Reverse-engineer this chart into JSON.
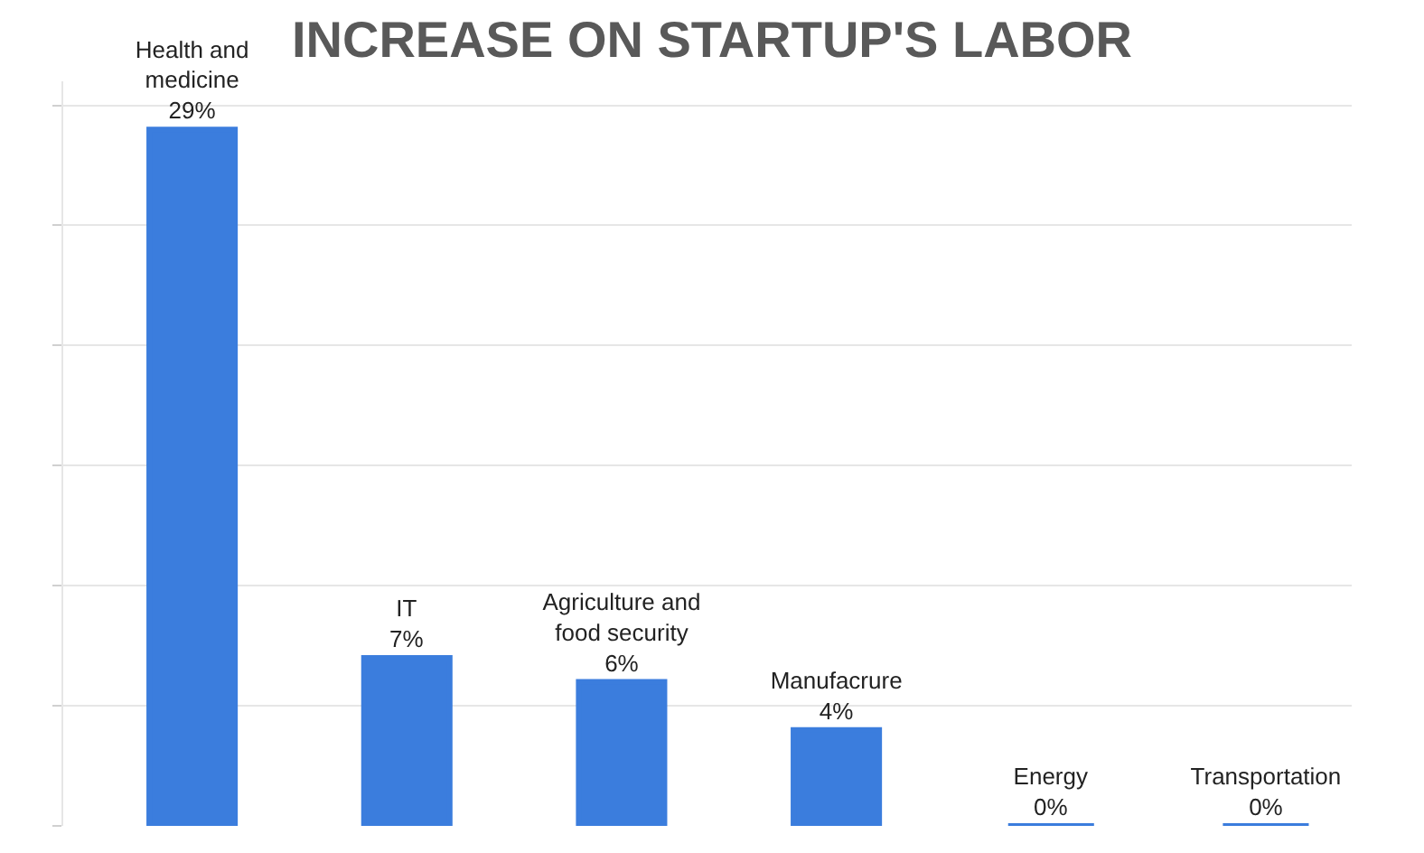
{
  "chart_data": {
    "type": "bar",
    "title": "INCREASE ON STARTUP'S LABOR",
    "categories": [
      "Health and medicine",
      "IT",
      "Agriculture and food security",
      "Manufacrure",
      "Energy",
      "Transportation"
    ],
    "values": [
      29,
      7,
      6,
      4,
      0,
      0
    ],
    "value_labels": [
      "29%",
      "7%",
      "6%",
      "4%",
      "0%",
      "0%"
    ],
    "color": "#3b7ddd",
    "ylim": [
      0,
      31
    ],
    "yticks": [
      {
        "value": 0,
        "label": null
      },
      {
        "value": 5,
        "label": null
      },
      {
        "value": 10,
        "label": null
      },
      {
        "value": 15,
        "label": null
      },
      {
        "value": 20,
        "label": null
      },
      {
        "value": 25,
        "label": null
      },
      {
        "value": 30,
        "label": null
      }
    ],
    "grid": "y"
  }
}
